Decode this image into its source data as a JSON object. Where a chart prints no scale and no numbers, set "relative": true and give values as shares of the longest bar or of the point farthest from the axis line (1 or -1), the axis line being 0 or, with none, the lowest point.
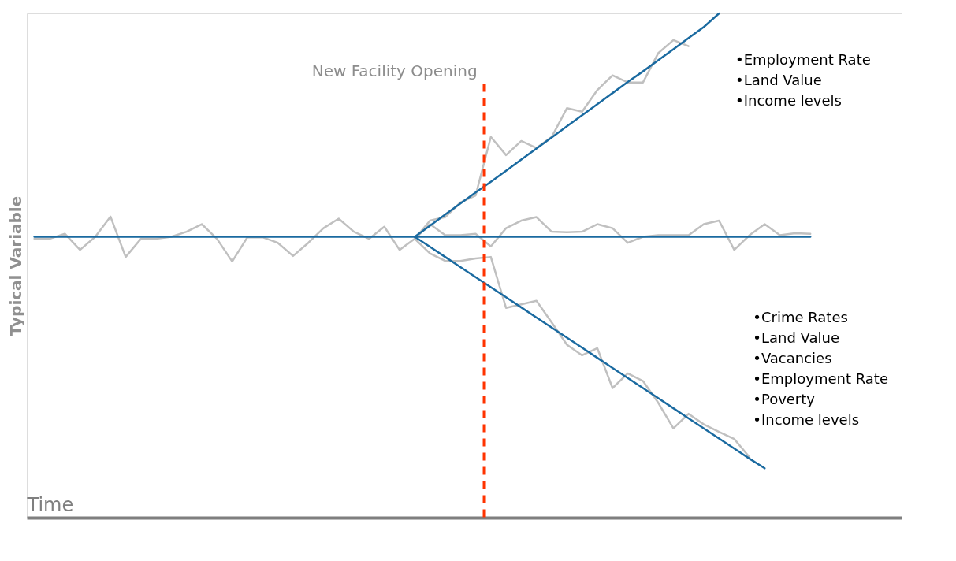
{
  "chart_data": {
    "type": "line",
    "relative": true,
    "xlabel": "Time",
    "ylabel": "Typical Variable",
    "legend": false,
    "grid": false,
    "marker": "none",
    "line_style": "solid",
    "tick_labels": false,
    "categories": [
      null,
      null,
      null,
      null,
      null,
      null,
      null,
      null,
      null,
      null,
      null,
      null,
      null,
      null,
      null,
      null,
      null,
      null,
      null,
      null,
      null,
      null,
      null,
      null,
      null,
      null,
      null,
      null,
      null,
      null,
      null,
      null,
      null,
      null,
      null,
      null,
      null,
      null,
      null,
      null,
      null,
      null,
      null,
      null,
      null,
      null,
      null,
      null,
      null,
      null,
      null,
      null
    ],
    "series": [
      {
        "color": "#c0c0c0",
        "values": [
          0.553,
          0.553,
          0.563,
          0.531,
          0.557,
          0.597,
          0.517,
          0.553,
          0.553,
          0.557,
          0.567,
          0.582,
          0.553,
          0.508,
          0.556,
          0.556,
          0.545,
          0.519,
          0.545,
          0.574,
          0.593,
          0.567,
          0.553,
          0.577,
          0.531,
          0.553,
          0.582,
          0.56,
          0.56,
          0.563,
          0.538,
          0.574,
          0.589,
          0.596,
          0.567,
          0.566,
          0.567,
          0.582,
          0.574,
          0.545,
          0.557,
          0.56,
          0.56,
          0.56,
          0.582,
          0.589,
          0.531,
          0.56,
          0.582,
          0.56,
          0.564,
          0.563
        ]
      },
      {
        "color": "#c0c0c0",
        "values": [
          null,
          null,
          null,
          null,
          null,
          null,
          null,
          null,
          null,
          null,
          null,
          null,
          null,
          null,
          null,
          null,
          null,
          null,
          null,
          null,
          null,
          null,
          null,
          null,
          null,
          0.553,
          0.589,
          0.596,
          0.625,
          0.639,
          0.755,
          0.719,
          0.747,
          0.733,
          0.755,
          0.812,
          0.805,
          0.848,
          0.877,
          0.863,
          0.863,
          0.921,
          0.947,
          0.935,
          null,
          null,
          null,
          null,
          null,
          null,
          null,
          null
        ]
      },
      {
        "color": "#c0c0c0",
        "values": [
          null,
          null,
          null,
          null,
          null,
          null,
          null,
          null,
          null,
          null,
          null,
          null,
          null,
          null,
          null,
          null,
          null,
          null,
          null,
          null,
          null,
          null,
          null,
          null,
          null,
          0.553,
          0.524,
          0.509,
          0.509,
          0.514,
          0.517,
          0.416,
          0.423,
          0.43,
          0.387,
          0.343,
          0.322,
          0.336,
          0.257,
          0.286,
          0.271,
          0.228,
          0.177,
          0.206,
          0.185,
          0.17,
          0.156,
          0.12,
          null,
          null,
          null,
          null
        ]
      },
      {
        "color": "#1a6aa0",
        "values": [
          0.557,
          0.557,
          0.557,
          0.557,
          0.557,
          0.557,
          0.557,
          0.557,
          0.557,
          0.557,
          0.557,
          0.557,
          0.557,
          0.557,
          0.557,
          0.557,
          0.557,
          0.557,
          0.557,
          0.557,
          0.557,
          0.557,
          0.557,
          0.557,
          0.557,
          0.557,
          0.557,
          0.557,
          0.557,
          0.557,
          0.557,
          0.557,
          0.557,
          0.557,
          0.557,
          0.557,
          0.557,
          0.557,
          0.557,
          0.557,
          0.557,
          0.557,
          0.557,
          0.557,
          0.557,
          0.557,
          0.557,
          0.557,
          0.557,
          0.557,
          0.557,
          0.557
        ]
      },
      {
        "color": "#1a6aa0",
        "values": [
          null,
          null,
          null,
          null,
          null,
          null,
          null,
          null,
          null,
          null,
          null,
          null,
          null,
          null,
          null,
          null,
          null,
          null,
          null,
          null,
          null,
          null,
          null,
          null,
          null,
          0.557,
          0.579,
          0.601,
          0.623,
          0.645,
          0.666,
          0.688,
          0.71,
          0.732,
          0.754,
          0.776,
          0.798,
          0.82,
          0.842,
          0.864,
          0.885,
          0.907,
          0.929,
          0.951,
          0.973,
          1.0,
          null,
          null,
          null,
          null,
          null,
          null
        ]
      },
      {
        "color": "#1a6aa0",
        "values": [
          null,
          null,
          null,
          null,
          null,
          null,
          null,
          null,
          null,
          null,
          null,
          null,
          null,
          null,
          null,
          null,
          null,
          null,
          null,
          null,
          null,
          null,
          null,
          null,
          null,
          0.557,
          0.537,
          0.517,
          0.497,
          0.477,
          0.457,
          0.437,
          0.417,
          0.397,
          0.377,
          0.357,
          0.337,
          0.317,
          0.297,
          0.277,
          0.257,
          0.237,
          0.217,
          0.197,
          0.177,
          0.157,
          0.137,
          0.117,
          0.098,
          null,
          null,
          null
        ]
      }
    ],
    "annotations": [
      "New Facility Opening",
      "•Employment Rate\n•Land Value\n•Income levels",
      "•Crime Rates\n•Land Value\n•Vacancies\n•Employment Rate\n•Poverty\n•Income levels"
    ]
  }
}
